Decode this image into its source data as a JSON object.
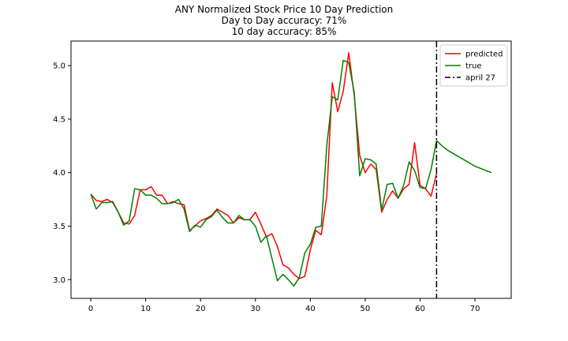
{
  "chart_data": {
    "type": "line",
    "title_lines": [
      "ANY Normalized Stock Price 10 Day Prediction",
      "Day to Day accuracy: 71%",
      "10 day accuracy: 85%"
    ],
    "xlim": [
      -3.6,
      76.6
    ],
    "ylim": [
      2.825,
      5.23
    ],
    "x_ticks": [
      0,
      10,
      20,
      30,
      40,
      50,
      60,
      70
    ],
    "y_ticks": [
      3.0,
      3.5,
      4.0,
      4.5,
      5.0
    ],
    "y_tick_labels": [
      "3.0",
      "3.5",
      "4.0",
      "4.5",
      "5.0"
    ],
    "legend": {
      "position": "top-right",
      "entries": [
        {
          "label": "predicted",
          "color": "#ff0000",
          "style": "solid"
        },
        {
          "label": "true",
          "color": "#008000",
          "style": "solid"
        },
        {
          "label": "april 27",
          "color": "#000000",
          "style": "dashdot"
        }
      ]
    },
    "vline": {
      "x": 63,
      "label": "april 27",
      "color": "#000000",
      "style": "dashdot"
    },
    "series": [
      {
        "name": "predicted",
        "color": "#ff0000",
        "x": [
          0,
          1,
          2,
          3,
          4,
          5,
          6,
          7,
          8,
          9,
          10,
          11,
          12,
          13,
          14,
          15,
          16,
          17,
          18,
          19,
          20,
          21,
          22,
          23,
          24,
          25,
          26,
          27,
          28,
          29,
          30,
          31,
          32,
          33,
          34,
          35,
          36,
          37,
          38,
          39,
          40,
          41,
          42,
          43,
          44,
          45,
          46,
          47,
          48,
          49,
          50,
          51,
          52,
          53,
          54,
          55,
          56,
          57,
          58,
          59,
          60,
          61,
          62,
          63
        ],
        "y": [
          3.8,
          3.74,
          3.73,
          3.75,
          3.72,
          3.63,
          3.53,
          3.52,
          3.6,
          3.84,
          3.84,
          3.87,
          3.79,
          3.79,
          3.71,
          3.73,
          3.71,
          3.7,
          3.46,
          3.5,
          3.55,
          3.57,
          3.6,
          3.66,
          3.63,
          3.6,
          3.53,
          3.58,
          3.56,
          3.56,
          3.63,
          3.52,
          3.4,
          3.43,
          3.31,
          3.14,
          3.11,
          3.05,
          3.01,
          3.03,
          3.28,
          3.46,
          3.42,
          3.78,
          4.84,
          4.57,
          4.76,
          5.12,
          4.72,
          4.16,
          4.0,
          4.08,
          4.03,
          3.63,
          3.75,
          3.83,
          3.76,
          3.85,
          3.89,
          4.28,
          3.88,
          3.85,
          3.78,
          3.99
        ]
      },
      {
        "name": "true",
        "color": "#008000",
        "x": [
          0,
          1,
          2,
          3,
          4,
          5,
          6,
          7,
          8,
          9,
          10,
          11,
          12,
          13,
          14,
          15,
          16,
          17,
          18,
          19,
          20,
          21,
          22,
          23,
          24,
          25,
          26,
          27,
          28,
          29,
          30,
          31,
          32,
          33,
          34,
          35,
          36,
          37,
          38,
          39,
          40,
          41,
          42,
          43,
          44,
          45,
          46,
          47,
          48,
          49,
          50,
          51,
          52,
          53,
          54,
          55,
          56,
          57,
          58,
          59,
          60,
          61,
          62,
          63,
          64,
          65,
          66,
          67,
          68,
          69,
          70,
          71,
          72,
          73
        ],
        "y": [
          3.8,
          3.66,
          3.72,
          3.72,
          3.73,
          3.63,
          3.51,
          3.55,
          3.85,
          3.84,
          3.79,
          3.79,
          3.76,
          3.71,
          3.71,
          3.72,
          3.75,
          3.66,
          3.45,
          3.51,
          3.49,
          3.56,
          3.59,
          3.65,
          3.58,
          3.53,
          3.53,
          3.6,
          3.56,
          3.56,
          3.5,
          3.35,
          3.41,
          3.2,
          2.99,
          3.05,
          3.0,
          2.94,
          3.02,
          3.25,
          3.33,
          3.49,
          3.5,
          4.25,
          4.71,
          4.68,
          5.05,
          5.03,
          4.75,
          3.97,
          4.13,
          4.12,
          4.08,
          3.65,
          3.89,
          3.9,
          3.76,
          3.88,
          4.1,
          4.02,
          3.86,
          3.85,
          4.03,
          4.3,
          4.25,
          4.21,
          4.18,
          4.15,
          4.12,
          4.09,
          4.06,
          4.04,
          4.02,
          4.0
        ]
      }
    ]
  }
}
